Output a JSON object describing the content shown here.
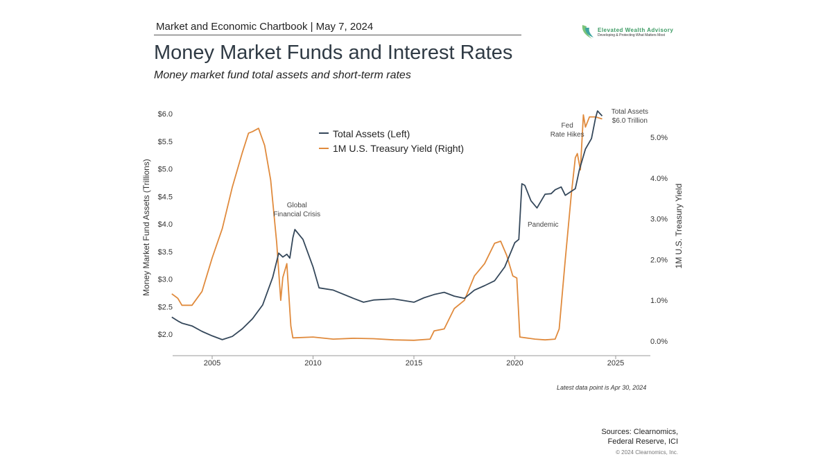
{
  "header": "Market and Economic Chartbook | May 7, 2024",
  "logo": {
    "name": "Elevated Wealth Advisory",
    "tagline": "Developing & Protecting What Matters Most"
  },
  "title": "Money Market Funds and Interest Rates",
  "subtitle": "Money market fund total assets and short-term rates",
  "note": "Latest data point is Apr 30, 2024",
  "sources": [
    "Sources: Clearnomics,",
    "Federal Reserve, ICI"
  ],
  "copyright": "© 2024 Clearnomics, Inc.",
  "chart_data": {
    "type": "line",
    "ylabel_left": "Money Market Fund Assets (Trillions)",
    "ylabel_right": "1M U.S. Treasury Yield",
    "xlim": [
      2003,
      2026.6
    ],
    "ylim_left": [
      1.85,
      6.2
    ],
    "ylim_right": [
      -0.35,
      5.7
    ],
    "x_ticks": [
      "2005",
      "2010",
      "2015",
      "2020",
      "2025"
    ],
    "y_left_ticks": [
      "$2.0",
      "$2.5",
      "$3.0",
      "$3.5",
      "$4.0",
      "$4.5",
      "$5.0",
      "$5.5",
      "$6.0"
    ],
    "y_right_ticks": [
      "0.0%",
      "1.0%",
      "2.0%",
      "3.0%",
      "4.0%",
      "5.0%"
    ],
    "grid": false,
    "legend": "top-center",
    "colors": {
      "assets": "#34475a",
      "yield": "#e08a3c"
    },
    "annotations": [
      {
        "lines": [
          "Global",
          "Financial Crisis"
        ],
        "x": 2009.2,
        "y_left": 4.3
      },
      {
        "lines": [
          "Pandemic"
        ],
        "x": 2021.4,
        "y_left": 3.95
      },
      {
        "lines": [
          "Fed",
          "Rate Hikes"
        ],
        "x": 2022.6,
        "y_left": 5.75
      },
      {
        "lines": [
          "Total Assets",
          "$6.0 Trillion"
        ],
        "x": 2025.7,
        "y_left": 6.0
      }
    ],
    "series": [
      {
        "name": "Total Assets (Left)",
        "axis": "left",
        "key": "assets",
        "points": [
          [
            2003.0,
            2.31
          ],
          [
            2003.3,
            2.24
          ],
          [
            2003.5,
            2.2
          ],
          [
            2004.0,
            2.15
          ],
          [
            2004.5,
            2.05
          ],
          [
            2005.0,
            1.97
          ],
          [
            2005.5,
            1.9
          ],
          [
            2006.0,
            1.96
          ],
          [
            2006.5,
            2.1
          ],
          [
            2007.0,
            2.28
          ],
          [
            2007.5,
            2.53
          ],
          [
            2008.0,
            3.03
          ],
          [
            2008.3,
            3.47
          ],
          [
            2008.5,
            3.4
          ],
          [
            2008.7,
            3.45
          ],
          [
            2008.85,
            3.38
          ],
          [
            2009.0,
            3.75
          ],
          [
            2009.1,
            3.9
          ],
          [
            2009.5,
            3.72
          ],
          [
            2010.0,
            3.22
          ],
          [
            2010.3,
            2.84
          ],
          [
            2011.0,
            2.8
          ],
          [
            2012.0,
            2.65
          ],
          [
            2012.5,
            2.58
          ],
          [
            2013.0,
            2.62
          ],
          [
            2014.0,
            2.64
          ],
          [
            2015.0,
            2.58
          ],
          [
            2015.5,
            2.66
          ],
          [
            2016.0,
            2.72
          ],
          [
            2016.5,
            2.76
          ],
          [
            2017.0,
            2.69
          ],
          [
            2017.5,
            2.65
          ],
          [
            2018.0,
            2.8
          ],
          [
            2018.5,
            2.88
          ],
          [
            2019.0,
            2.97
          ],
          [
            2019.5,
            3.22
          ],
          [
            2020.0,
            3.66
          ],
          [
            2020.2,
            3.72
          ],
          [
            2020.35,
            4.73
          ],
          [
            2020.5,
            4.7
          ],
          [
            2020.8,
            4.42
          ],
          [
            2021.1,
            4.29
          ],
          [
            2021.5,
            4.54
          ],
          [
            2021.8,
            4.55
          ],
          [
            2022.0,
            4.62
          ],
          [
            2022.3,
            4.67
          ],
          [
            2022.5,
            4.52
          ],
          [
            2023.0,
            4.64
          ],
          [
            2023.2,
            4.98
          ],
          [
            2023.5,
            5.36
          ],
          [
            2023.8,
            5.55
          ],
          [
            2024.0,
            5.92
          ],
          [
            2024.1,
            6.05
          ],
          [
            2024.33,
            5.96
          ]
        ]
      },
      {
        "name": "1M U.S. Treasury Yield (Right)",
        "axis": "right",
        "key": "yield",
        "points": [
          [
            2003.0,
            1.16
          ],
          [
            2003.3,
            1.05
          ],
          [
            2003.5,
            0.88
          ],
          [
            2004.0,
            0.88
          ],
          [
            2004.5,
            1.22
          ],
          [
            2005.0,
            2.04
          ],
          [
            2005.5,
            2.76
          ],
          [
            2006.0,
            3.78
          ],
          [
            2006.5,
            4.63
          ],
          [
            2006.8,
            5.1
          ],
          [
            2007.0,
            5.14
          ],
          [
            2007.3,
            5.22
          ],
          [
            2007.6,
            4.8
          ],
          [
            2007.9,
            3.95
          ],
          [
            2008.2,
            2.41
          ],
          [
            2008.4,
            1.0
          ],
          [
            2008.5,
            1.56
          ],
          [
            2008.7,
            1.9
          ],
          [
            2008.9,
            0.37
          ],
          [
            2009.0,
            0.08
          ],
          [
            2010.0,
            0.1
          ],
          [
            2011.0,
            0.05
          ],
          [
            2012.0,
            0.07
          ],
          [
            2013.0,
            0.06
          ],
          [
            2014.0,
            0.03
          ],
          [
            2015.0,
            0.02
          ],
          [
            2015.8,
            0.05
          ],
          [
            2016.0,
            0.25
          ],
          [
            2016.5,
            0.3
          ],
          [
            2017.0,
            0.8
          ],
          [
            2017.5,
            1.0
          ],
          [
            2018.0,
            1.6
          ],
          [
            2018.5,
            1.9
          ],
          [
            2019.0,
            2.4
          ],
          [
            2019.3,
            2.45
          ],
          [
            2019.6,
            2.1
          ],
          [
            2019.9,
            1.6
          ],
          [
            2020.1,
            1.55
          ],
          [
            2020.25,
            0.1
          ],
          [
            2021.0,
            0.05
          ],
          [
            2021.5,
            0.03
          ],
          [
            2022.0,
            0.05
          ],
          [
            2022.2,
            0.3
          ],
          [
            2022.5,
            2.0
          ],
          [
            2022.8,
            3.6
          ],
          [
            2023.0,
            4.5
          ],
          [
            2023.1,
            4.6
          ],
          [
            2023.25,
            4.2
          ],
          [
            2023.4,
            5.55
          ],
          [
            2023.5,
            5.25
          ],
          [
            2023.7,
            5.5
          ],
          [
            2024.0,
            5.5
          ],
          [
            2024.33,
            5.45
          ]
        ]
      }
    ]
  }
}
